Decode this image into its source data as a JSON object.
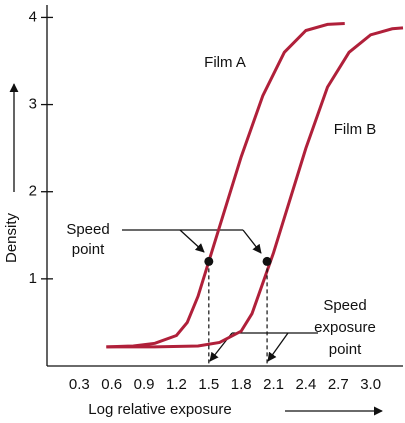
{
  "chart_data": {
    "type": "line",
    "xlabel": "Log relative exposure",
    "ylabel": "Density",
    "xlim": [
      0,
      3.3
    ],
    "ylim": [
      0,
      4.2
    ],
    "xticks": [
      0.3,
      0.6,
      0.9,
      1.2,
      1.5,
      1.8,
      2.1,
      2.4,
      2.7,
      {
        "value": 3,
        "label": "3.0"
      }
    ],
    "yticks": [
      1,
      2,
      3,
      4
    ],
    "series": [
      {
        "name": "Film A",
        "color": "#b0203a",
        "x": [
          0.55,
          0.8,
          1.0,
          1.2,
          1.3,
          1.4,
          1.5,
          1.6,
          1.8,
          2.0,
          2.2,
          2.4,
          2.6,
          2.76
        ],
        "values": [
          0.22,
          0.23,
          0.26,
          0.35,
          0.5,
          0.8,
          1.2,
          1.6,
          2.4,
          3.1,
          3.6,
          3.85,
          3.92,
          3.93
        ]
      },
      {
        "name": "Film B",
        "color": "#b0203a",
        "x": [
          0.55,
          1.0,
          1.4,
          1.6,
          1.8,
          1.9,
          2.0,
          2.1,
          2.2,
          2.4,
          2.6,
          2.8,
          3.0,
          3.2,
          3.3
        ],
        "values": [
          0.22,
          0.22,
          0.23,
          0.27,
          0.4,
          0.6,
          0.95,
          1.3,
          1.7,
          2.5,
          3.2,
          3.6,
          3.8,
          3.87,
          3.88
        ]
      }
    ],
    "speed_points": {
      "x": [
        1.5,
        2.04
      ],
      "values": [
        1.2,
        1.2
      ]
    },
    "annotations": [
      [
        "Speed",
        "point"
      ],
      [
        "Speed",
        "exposure",
        "point"
      ]
    ]
  }
}
